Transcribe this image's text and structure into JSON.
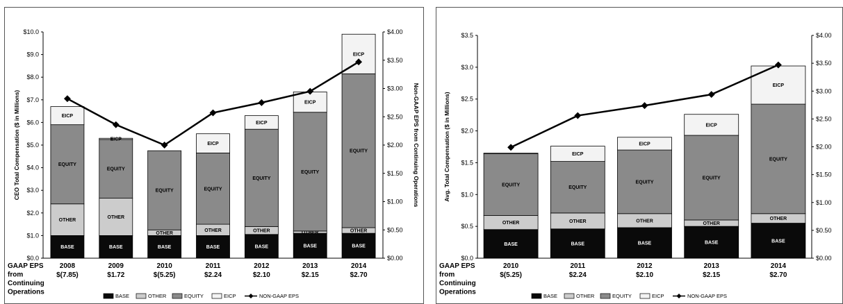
{
  "colors": {
    "base": "#0a0a0a",
    "other": "#cccccc",
    "equity": "#8a8a8a",
    "eicp": "#f3f3f3",
    "eps_line": "#000000",
    "border": "#555555"
  },
  "chart_data": [
    {
      "type": "bar",
      "stacked": true,
      "categories": [
        "2008",
        "2009",
        "2010",
        "2011",
        "2012",
        "2013",
        "2014"
      ],
      "series": [
        {
          "name": "BASE",
          "values": [
            1.0,
            1.0,
            1.0,
            1.0,
            1.05,
            1.1,
            1.1
          ]
        },
        {
          "name": "OTHER",
          "values": [
            1.4,
            1.65,
            0.25,
            0.5,
            0.35,
            0.1,
            0.25
          ]
        },
        {
          "name": "EQUITY",
          "values": [
            3.5,
            2.6,
            3.5,
            3.15,
            4.3,
            5.25,
            6.8
          ]
        },
        {
          "name": "EICP",
          "values": [
            0.8,
            0.05,
            0.0,
            0.85,
            0.6,
            0.9,
            1.75
          ]
        }
      ],
      "line_series": {
        "name": "NON-GAAP EPS",
        "axis": "right",
        "values": [
          2.82,
          2.36,
          2.0,
          2.57,
          2.75,
          2.95,
          3.47
        ]
      },
      "segment_labels": {
        "BASE": [
          "BASE",
          "BASE",
          "BASE",
          "BASE",
          "BASE",
          "BASE",
          "BASE"
        ],
        "OTHER": [
          "OTHER",
          "OTHER",
          "OTHER",
          "OTHER",
          "OTHER",
          "OTHER",
          "OTHER"
        ],
        "EQUITY": [
          "EQUITY",
          "EQUITY",
          "EQUITY",
          "EQUITY",
          "EQUITY",
          "EQUITY",
          "EQUITY"
        ],
        "EICP": [
          "EICP",
          "EICP",
          "",
          "EICP",
          "EICP",
          "EICP",
          "EICP"
        ]
      },
      "left_ticks": [
        "$0.0",
        "$1.0",
        "$2.0",
        "$3.0",
        "$4.0",
        "$5.0",
        "$6.0",
        "$7.0",
        "$8.0",
        "$9.0",
        "$10.0"
      ],
      "right_ticks": [
        "$0.00",
        "$0.50",
        "$1.00",
        "$1.50",
        "$2.00",
        "$2.50",
        "$3.00",
        "$3.50",
        "$4.00"
      ],
      "ylim": [
        0,
        10
      ],
      "y2lim": [
        0,
        4
      ],
      "ylabel": "CEO Total Compensation ($ in Millions)",
      "y2label": "Non-GAAP EPS from Continuing Operations",
      "eps_row_label": [
        "GAAP EPS",
        "from",
        "Continuing",
        "Operations"
      ],
      "gaap_eps": [
        "$(7.85)",
        "$1.72",
        "$(5.25)",
        "$2.24",
        "$2.10",
        "$2.15",
        "$2.70"
      ],
      "legend": [
        "BASE",
        "OTHER",
        "EQUITY",
        "EICP",
        "NON-GAAP EPS"
      ],
      "legend_position": "bottom"
    },
    {
      "type": "bar",
      "stacked": true,
      "categories": [
        "2010",
        "2011",
        "2012",
        "2013",
        "2014"
      ],
      "series": [
        {
          "name": "BASE",
          "values": [
            0.45,
            0.46,
            0.48,
            0.5,
            0.55
          ]
        },
        {
          "name": "OTHER",
          "values": [
            0.22,
            0.25,
            0.22,
            0.1,
            0.15
          ]
        },
        {
          "name": "EQUITY",
          "values": [
            0.97,
            0.81,
            1.0,
            1.33,
            1.72
          ]
        },
        {
          "name": "EICP",
          "values": [
            0.01,
            0.24,
            0.2,
            0.33,
            0.6
          ]
        }
      ],
      "line_series": {
        "name": "NON-GAAP EPS",
        "axis": "right",
        "values": [
          1.99,
          2.56,
          2.74,
          2.94,
          3.47
        ]
      },
      "segment_labels": {
        "BASE": [
          "BASE",
          "BASE",
          "BASE",
          "BASE",
          "BASE"
        ],
        "OTHER": [
          "OTHER",
          "OTHER",
          "OTHER",
          "OTHER",
          "OTHER"
        ],
        "EQUITY": [
          "EQUITY",
          "EQUITY",
          "EQUITY",
          "EQUITY",
          "EQUITY"
        ],
        "EICP": [
          "",
          "EICP",
          "EICP",
          "EICP",
          "EICP"
        ]
      },
      "left_ticks": [
        "$0.0",
        "$0.5",
        "$1.0",
        "$1.5",
        "$2.0",
        "$2.5",
        "$3.0",
        "$3.5"
      ],
      "right_ticks": [
        "$0.00",
        "$0.50",
        "$1.00",
        "$1.50",
        "$2.00",
        "$2.50",
        "$3.00",
        "$3.50",
        "$4.00"
      ],
      "ylim": [
        0,
        3.5
      ],
      "y2lim": [
        0,
        4
      ],
      "ylabel": "Avg. Total Compensation ($ in Millions)",
      "y2label": "",
      "eps_row_label": [
        "GAAP EPS",
        "from",
        "Continuing",
        "Operations"
      ],
      "gaap_eps": [
        "$(5.25)",
        "$2.24",
        "$2.10",
        "$2.15",
        "$2.70"
      ],
      "legend": [
        "BASE",
        "OTHER",
        "EQUITY",
        "EICP",
        "NON-GAAP EPS"
      ],
      "legend_position": "bottom"
    }
  ]
}
